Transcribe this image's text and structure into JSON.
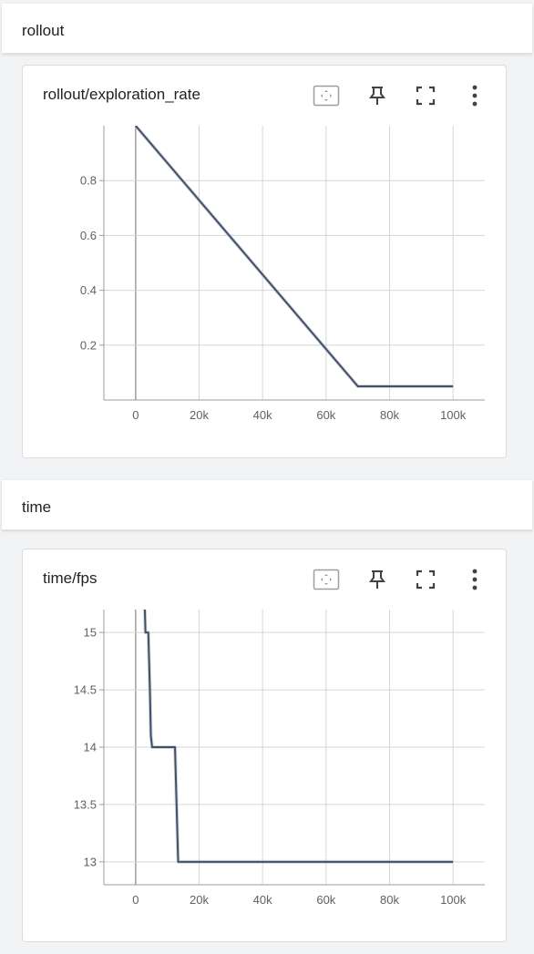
{
  "sections": [
    {
      "title": "rollout"
    },
    {
      "title": "time"
    }
  ],
  "chart_data": [
    {
      "type": "line",
      "title": "rollout/exploration_rate",
      "xlabel": "",
      "ylabel": "",
      "xlim": [
        -10000,
        110000
      ],
      "ylim": [
        0,
        1
      ],
      "xticks": [
        0,
        20000,
        40000,
        60000,
        80000,
        100000
      ],
      "xtick_labels": [
        "0",
        "20k",
        "40k",
        "60k",
        "80k",
        "100k"
      ],
      "yticks": [
        0.2,
        0.4,
        0.6,
        0.8
      ],
      "ytick_labels": [
        "0.2",
        "0.4",
        "0.6",
        "0.8"
      ],
      "grid": true,
      "series": [
        {
          "color": "#425066",
          "x": [
            0,
            70000,
            100000
          ],
          "y": [
            1.0,
            0.05,
            0.05
          ]
        }
      ]
    },
    {
      "type": "line",
      "title": "time/fps",
      "xlabel": "",
      "ylabel": "",
      "xlim": [
        -10000,
        110000
      ],
      "ylim": [
        12.8,
        15.2
      ],
      "xticks": [
        0,
        20000,
        40000,
        60000,
        80000,
        100000
      ],
      "xtick_labels": [
        "0",
        "20k",
        "40k",
        "60k",
        "80k",
        "100k"
      ],
      "yticks": [
        13,
        13.5,
        14,
        14.5,
        15
      ],
      "ytick_labels": [
        "13",
        "13.5",
        "14",
        "14.5",
        "15"
      ],
      "grid": true,
      "series": [
        {
          "color": "#425066",
          "x": [
            2800,
            3100,
            4000,
            4500,
            4800,
            5200,
            12400,
            12900,
            13400,
            100000
          ],
          "y": [
            15.3,
            15.0,
            15.0,
            14.5,
            14.1,
            14.0,
            14.0,
            13.5,
            13.0,
            13.0
          ]
        }
      ]
    }
  ]
}
